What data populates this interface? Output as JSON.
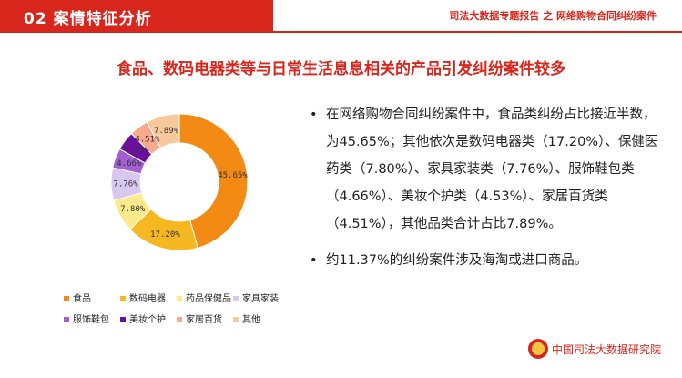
{
  "header": {
    "section_title": "02 案情特征分析",
    "report_title": "司法大数据专题报告 之 网络购物合同纠纷案件"
  },
  "headline": "食品、数码电器类等与日常生活息息相关的产品引发纠纷案件较多",
  "chart_data": {
    "type": "pie",
    "categories": [
      "食品",
      "数码电器",
      "药品保健品",
      "家具家装",
      "服饰鞋包",
      "美妆个护",
      "家居百货",
      "其他"
    ],
    "values": [
      45.65,
      17.2,
      7.8,
      7.76,
      4.66,
      4.53,
      4.51,
      7.89
    ],
    "labels": [
      "45.65%",
      "17.20%",
      "7.80%",
      "7.76%",
      "4.66%",
      "4.53%",
      "4.51%",
      "7.89%"
    ],
    "colors": [
      "#f28a14",
      "#f5b821",
      "#fbe98a",
      "#d8c8ef",
      "#a15fd2",
      "#6a0f9e",
      "#f6a98c",
      "#f6c89a"
    ],
    "legend_position": "bottom"
  },
  "bullets": [
    "在网络购物合同纠纷案件中，食品类纠纷占比接近半数，为45.65%；其他依次是数码电器类（17.20%）、保健医药类（7.80%）、家具家装类（7.76%）、服饰鞋包类（4.66%）、美妆个护类（4.53%）、家居百货类（4.51%），其他品类合计占比7.89%。",
    "约11.37%的纠纷案件涉及海淘或进口商品。"
  ],
  "bullet_symbol": "•",
  "footer": {
    "org": "中国司法大数据研究院"
  }
}
